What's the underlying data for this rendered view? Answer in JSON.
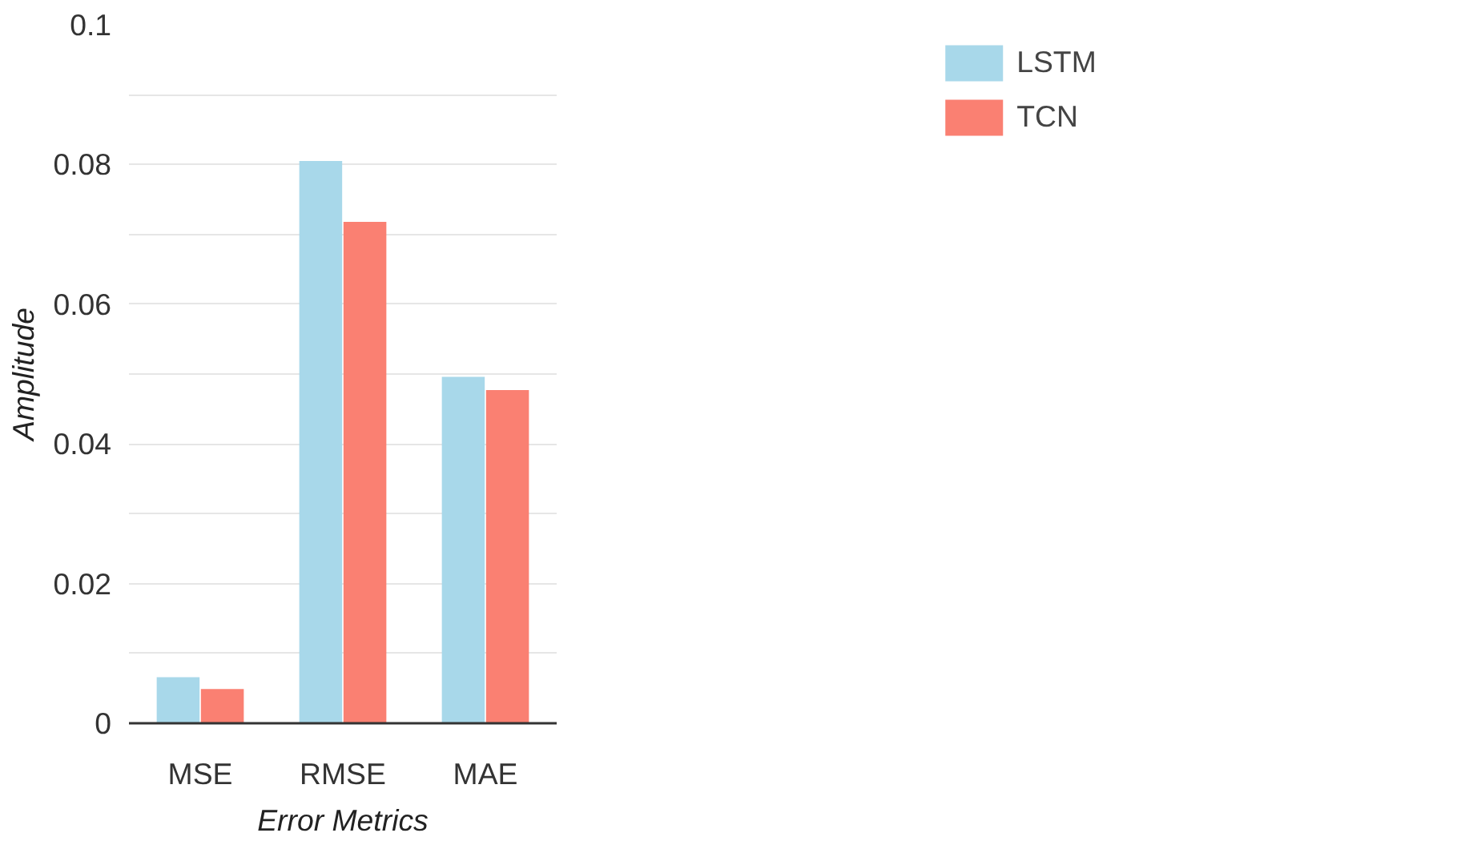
{
  "chart_data": {
    "type": "bar",
    "xlabel": "Error Metrics",
    "ylabel": "Amplitude",
    "categories": [
      "MSE",
      "RMSE",
      "MAE"
    ],
    "series": [
      {
        "name": "LSTM",
        "color": "#a8d8ea",
        "values": [
          0.0066,
          0.0805,
          0.0496
        ]
      },
      {
        "name": "TCN",
        "color": "#fa8072",
        "values": [
          0.0049,
          0.0718,
          0.0477
        ]
      }
    ],
    "ylim": [
      0,
      0.1
    ],
    "yticks": [
      0,
      {
        "value": 0.01,
        "label": null
      },
      0.02,
      {
        "value": 0.03,
        "label": null
      },
      0.04,
      {
        "value": 0.05,
        "label": null
      },
      0.06,
      {
        "value": 0.07,
        "label": null
      },
      0.08,
      {
        "value": 0.09,
        "label": null
      },
      0.1
    ],
    "grid": "y",
    "legend": "top right"
  }
}
